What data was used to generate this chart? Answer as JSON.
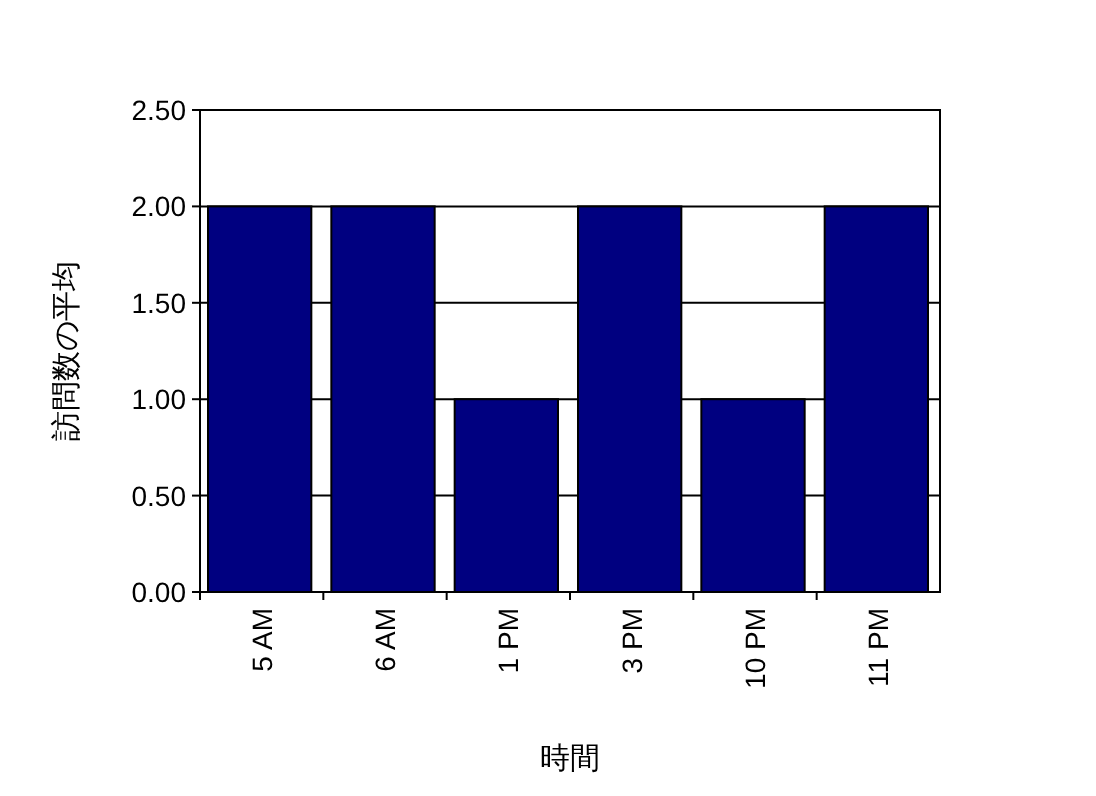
{
  "chart_data": {
    "type": "bar",
    "xlabel": "時間",
    "ylabel": "訪問数の平均",
    "categories": [
      "5 AM",
      "6 AM",
      "1 PM",
      "3 PM",
      "10 PM",
      "11 PM"
    ],
    "values": [
      2,
      2,
      1,
      2,
      1,
      2
    ],
    "color": "#000080",
    "ylim": [
      0,
      2.5
    ],
    "yticks": [
      {
        "value": 0,
        "label": "0.00"
      },
      {
        "value": 0.5,
        "label": "0.50"
      },
      {
        "value": 1,
        "label": "1.00"
      },
      {
        "value": 1.5,
        "label": "1.50"
      },
      {
        "value": 2,
        "label": "2.00"
      },
      {
        "value": 2.5,
        "label": "2.50"
      }
    ],
    "grid": "y"
  }
}
